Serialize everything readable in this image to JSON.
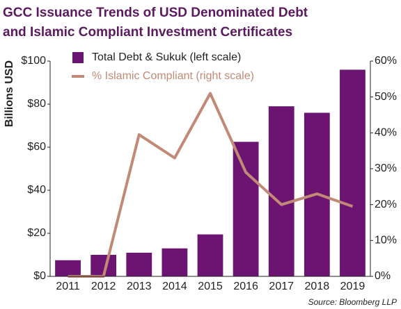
{
  "chart_data": {
    "type": "bar",
    "title": [
      "GCC Issuance Trends of USD Denominated Debt",
      "and Islamic Compliant Investment Certificates"
    ],
    "y_label": "Billions USD",
    "source": "Source: Bloomberg LLP",
    "categories": [
      "2011",
      "2012",
      "2013",
      "2014",
      "2015",
      "2016",
      "2017",
      "2018",
      "2019"
    ],
    "series": [
      {
        "name": "Total Debt & Sukuk (left scale)",
        "type": "bar",
        "color": "#6b1472",
        "values": [
          7.5,
          10,
          11,
          13,
          19.5,
          62.5,
          79,
          76,
          96
        ]
      },
      {
        "name": "% Islamic Compliant (right scale)",
        "type": "line",
        "axis": "y2",
        "color": "#c08a77",
        "values": [
          0,
          0,
          39.5,
          33,
          51,
          29,
          20,
          23,
          19.5
        ]
      }
    ],
    "ylim": [
      0,
      100
    ],
    "yticks": [
      {
        "value": 0,
        "label": "$0"
      },
      {
        "value": 20,
        "label": "$20"
      },
      {
        "value": 40,
        "label": "$40"
      },
      {
        "value": 60,
        "label": "$60"
      },
      {
        "value": 80,
        "label": "$80"
      },
      {
        "value": 100,
        "label": "$100"
      }
    ],
    "y2lim": [
      0,
      60
    ],
    "y2ticks": [
      {
        "value": 0,
        "label": "0%"
      },
      {
        "value": 10,
        "label": "10%"
      },
      {
        "value": 20,
        "label": "20%"
      },
      {
        "value": 30,
        "label": "30%"
      },
      {
        "value": 40,
        "label": "40%"
      },
      {
        "value": 50,
        "label": "50%"
      },
      {
        "value": 60,
        "label": "60%"
      }
    ],
    "legend": "upper left",
    "grid": false
  }
}
